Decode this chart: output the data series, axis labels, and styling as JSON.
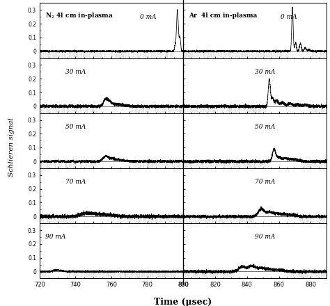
{
  "left_title": "N$_2$ 4l cm in-plasma",
  "right_title": "Ar  4l cm in-plasma",
  "xlabel": "Time (μsec)",
  "ylabel": "Schlieren signal",
  "left_xlim": [
    720,
    800
  ],
  "right_xlim": [
    800,
    890
  ],
  "ylim": [
    -0.05,
    0.35
  ],
  "yticks": [
    0,
    0.1,
    0.2,
    0.3
  ],
  "left_xticks": [
    720,
    740,
    760,
    780,
    800
  ],
  "right_xticks": [
    800,
    820,
    840,
    860,
    880
  ],
  "currents": [
    "0 mA",
    "30 mA",
    "50 mA",
    "70 mA",
    "90 mA"
  ],
  "background_color": "#ffffff",
  "line_color": "#000000",
  "fig_width": 4.74,
  "fig_height": 4.4,
  "dpi": 100
}
